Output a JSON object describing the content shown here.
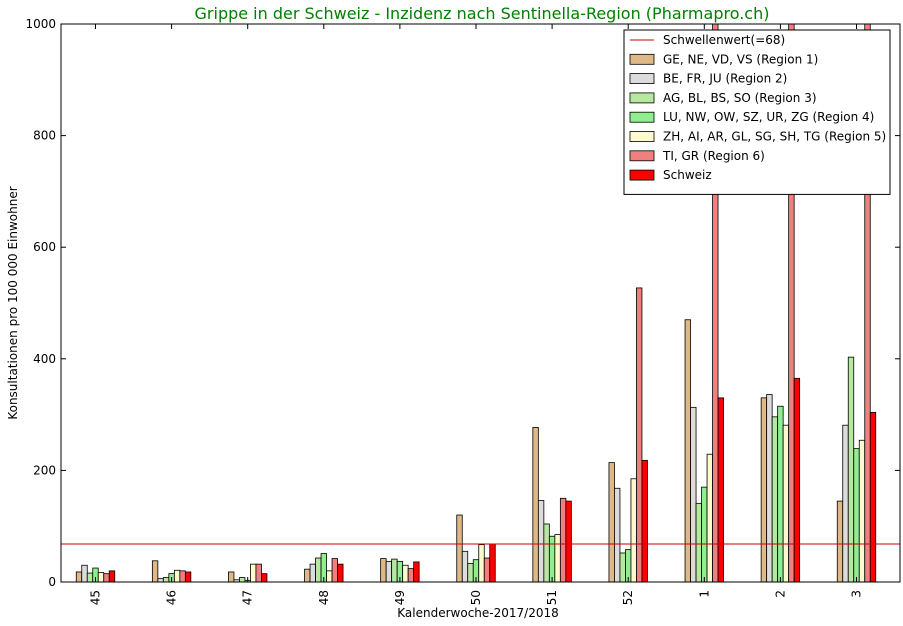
{
  "chart_data": {
    "type": "bar",
    "title": "Grippe in der Schweiz - Inzidenz nach Sentinella-Region (Pharmapro.ch)",
    "title_color": "#008000",
    "xlabel": "Kalenderwoche-2017/2018",
    "ylabel": "Konsultationen pro 100 000 Einwohner",
    "ylim": [
      0,
      1000
    ],
    "yticks": [
      0,
      200,
      400,
      600,
      800,
      1000
    ],
    "categories": [
      "45",
      "46",
      "47",
      "48",
      "49",
      "50",
      "51",
      "52",
      "1",
      "2",
      "3"
    ],
    "threshold": {
      "label": "Schwellenwert(=68)",
      "value": 68,
      "color": "#cc0000"
    },
    "legend_position": "top-right",
    "grid": false,
    "series": [
      {
        "name": "GE, NE, VD, VS (Region 1)",
        "color": "#deb887",
        "values": [
          18,
          38,
          18,
          23,
          42,
          120,
          277,
          214,
          470,
          330,
          145
        ]
      },
      {
        "name": "BE, FR, JU (Region 2)",
        "color": "#dcdcdc",
        "values": [
          30,
          6,
          4,
          32,
          37,
          55,
          146,
          168,
          313,
          336,
          281
        ]
      },
      {
        "name": "AG, BL, BS, SO (Region 3)",
        "color": "#b7e8a0",
        "values": [
          16,
          8,
          8,
          43,
          41,
          33,
          104,
          52,
          141,
          296,
          403
        ]
      },
      {
        "name": "LU, NW, OW, SZ, UR, ZG (Region 4)",
        "color": "#90ee90",
        "values": [
          25,
          15,
          3,
          51,
          37,
          40,
          82,
          58,
          170,
          315,
          239
        ]
      },
      {
        "name": "ZH, AI, AR, GL, SG, SH, TG (Region 5)",
        "color": "#fffacd",
        "values": [
          17,
          21,
          32,
          20,
          30,
          67,
          85,
          185,
          229,
          281,
          254
        ]
      },
      {
        "name": "TI, GR (Region 6)",
        "color": "#f08080",
        "values": [
          15,
          20,
          32,
          42,
          24,
          43,
          150,
          527,
          1000,
          1000,
          1000
        ]
      },
      {
        "name": "Schweiz",
        "color": "#ff0000",
        "values": [
          20,
          18,
          15,
          32,
          36,
          68,
          145,
          218,
          330,
          365,
          304
        ]
      }
    ]
  }
}
